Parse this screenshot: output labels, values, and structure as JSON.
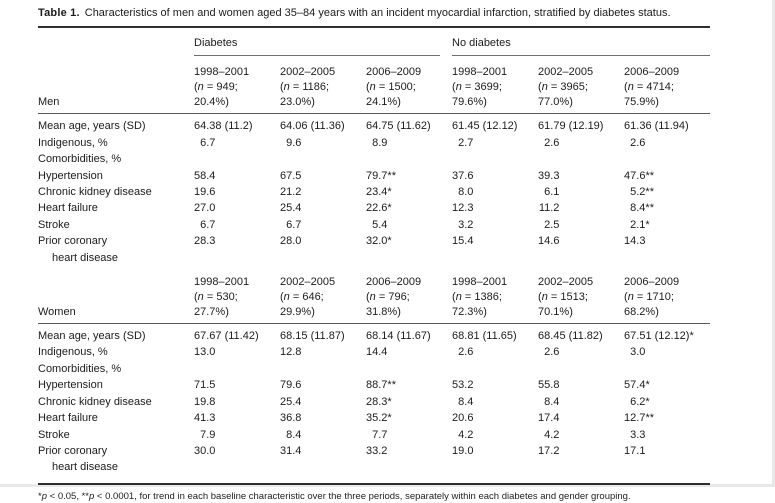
{
  "table": {
    "title_label": "Table 1.",
    "title_text": "Characteristics of men and women aged 35–84 years with an incident myocardial infarction, stratified by diabetes status.",
    "group_headers": [
      "Diabetes",
      "No diabetes"
    ],
    "sections": [
      {
        "stub_label": "Men",
        "period_columns": [
          {
            "period": "1998–2001",
            "n_line": "(n = 949;",
            "pct_line": "20.4%)"
          },
          {
            "period": "2002–2005",
            "n_line": "(n = 1186;",
            "pct_line": "23.0%)"
          },
          {
            "period": "2006–2009",
            "n_line": "(n = 1500;",
            "pct_line": "24.1%)"
          },
          {
            "period": "1998–2001",
            "n_line": "(n = 3699;",
            "pct_line": "79.6%)"
          },
          {
            "period": "2002–2005",
            "n_line": "(n = 3965;",
            "pct_line": "77.0%)"
          },
          {
            "period": "2006–2009",
            "n_line": "(n = 4714;",
            "pct_line": "75.9%)"
          }
        ],
        "rows": [
          {
            "label": "Mean age, years (SD)",
            "values": [
              "64.38 (11.2)",
              "64.06 (11.36)",
              "64.75 (11.62)",
              "61.45 (12.12)",
              "61.79 (12.19)",
              "61.36 (11.94)"
            ]
          },
          {
            "label": "Indigenous, %",
            "values": [
              "6.7",
              "9.6",
              "8.9",
              "2.7",
              "2.6",
              "2.6"
            ]
          },
          {
            "label": "Comorbidities, %",
            "values": [
              "",
              "",
              "",
              "",
              "",
              ""
            ]
          },
          {
            "label": "Hypertension",
            "values": [
              "58.4",
              "67.5",
              "79.7**",
              "37.6",
              "39.3",
              "47.6**"
            ]
          },
          {
            "label": "Chronic kidney disease",
            "values": [
              "19.6",
              "21.2",
              "23.4*",
              "8.0",
              "6.1",
              "5.2**"
            ]
          },
          {
            "label": "Heart failure",
            "values": [
              "27.0",
              "25.4",
              "22.6*",
              "12.3",
              "11.2",
              "8.4**"
            ]
          },
          {
            "label": "Stroke",
            "values": [
              "6.7",
              "6.7",
              "5.4",
              "3.2",
              "2.5",
              "2.1*"
            ]
          },
          {
            "label": "Prior coronary\nheart disease",
            "values": [
              "28.3",
              "28.0",
              "32.0*",
              "15.4",
              "14.6",
              "14.3"
            ]
          }
        ]
      },
      {
        "stub_label": "Women",
        "period_columns": [
          {
            "period": "1998–2001",
            "n_line": "(n = 530;",
            "pct_line": "27.7%)"
          },
          {
            "period": "2002–2005",
            "n_line": "(n = 646;",
            "pct_line": "29.9%)"
          },
          {
            "period": "2006–2009",
            "n_line": "(n = 796;",
            "pct_line": "31.8%)"
          },
          {
            "period": "1998–2001",
            "n_line": "(n = 1386;",
            "pct_line": "72.3%)"
          },
          {
            "period": "2002–2005",
            "n_line": "(n = 1513;",
            "pct_line": "70.1%)"
          },
          {
            "period": "2006–2009",
            "n_line": "(n = 1710;",
            "pct_line": "68.2%)"
          }
        ],
        "rows": [
          {
            "label": "Mean age, years (SD)",
            "values": [
              "67.67 (11.42)",
              "68.15 (11.87)",
              "68.14 (11.67)",
              "68.81 (11.65)",
              "68.45 (11.82)",
              "67.51 (12.12)*"
            ]
          },
          {
            "label": "Indigenous, %",
            "values": [
              "13.0",
              "12.8",
              "14.4",
              "2.6",
              "2.6",
              "3.0"
            ]
          },
          {
            "label": "Comorbidities, %",
            "values": [
              "",
              "",
              "",
              "",
              "",
              ""
            ]
          },
          {
            "label": "Hypertension",
            "values": [
              "71.5",
              "79.6",
              "88.7**",
              "53.2",
              "55.8",
              "57.4*"
            ]
          },
          {
            "label": "Chronic kidney disease",
            "values": [
              "19.8",
              "25.4",
              "28.3*",
              "8.4",
              "8.4",
              "6.2*"
            ]
          },
          {
            "label": "Heart failure",
            "values": [
              "41.3",
              "36.8",
              "35.2*",
              "20.6",
              "17.4",
              "12.7**"
            ]
          },
          {
            "label": "Stroke",
            "values": [
              "7.9",
              "8.4",
              "7.7",
              "4.2",
              "4.2",
              "3.3"
            ]
          },
          {
            "label": "Prior coronary\nheart disease",
            "values": [
              "30.0",
              "31.4",
              "33.2",
              "19.0",
              "17.2",
              "17.1"
            ]
          }
        ]
      }
    ],
    "footnote": "*p < 0.05, **p < 0.0001, for trend in each baseline characteristic over the three periods, separately within each diabetes and gender grouping."
  }
}
